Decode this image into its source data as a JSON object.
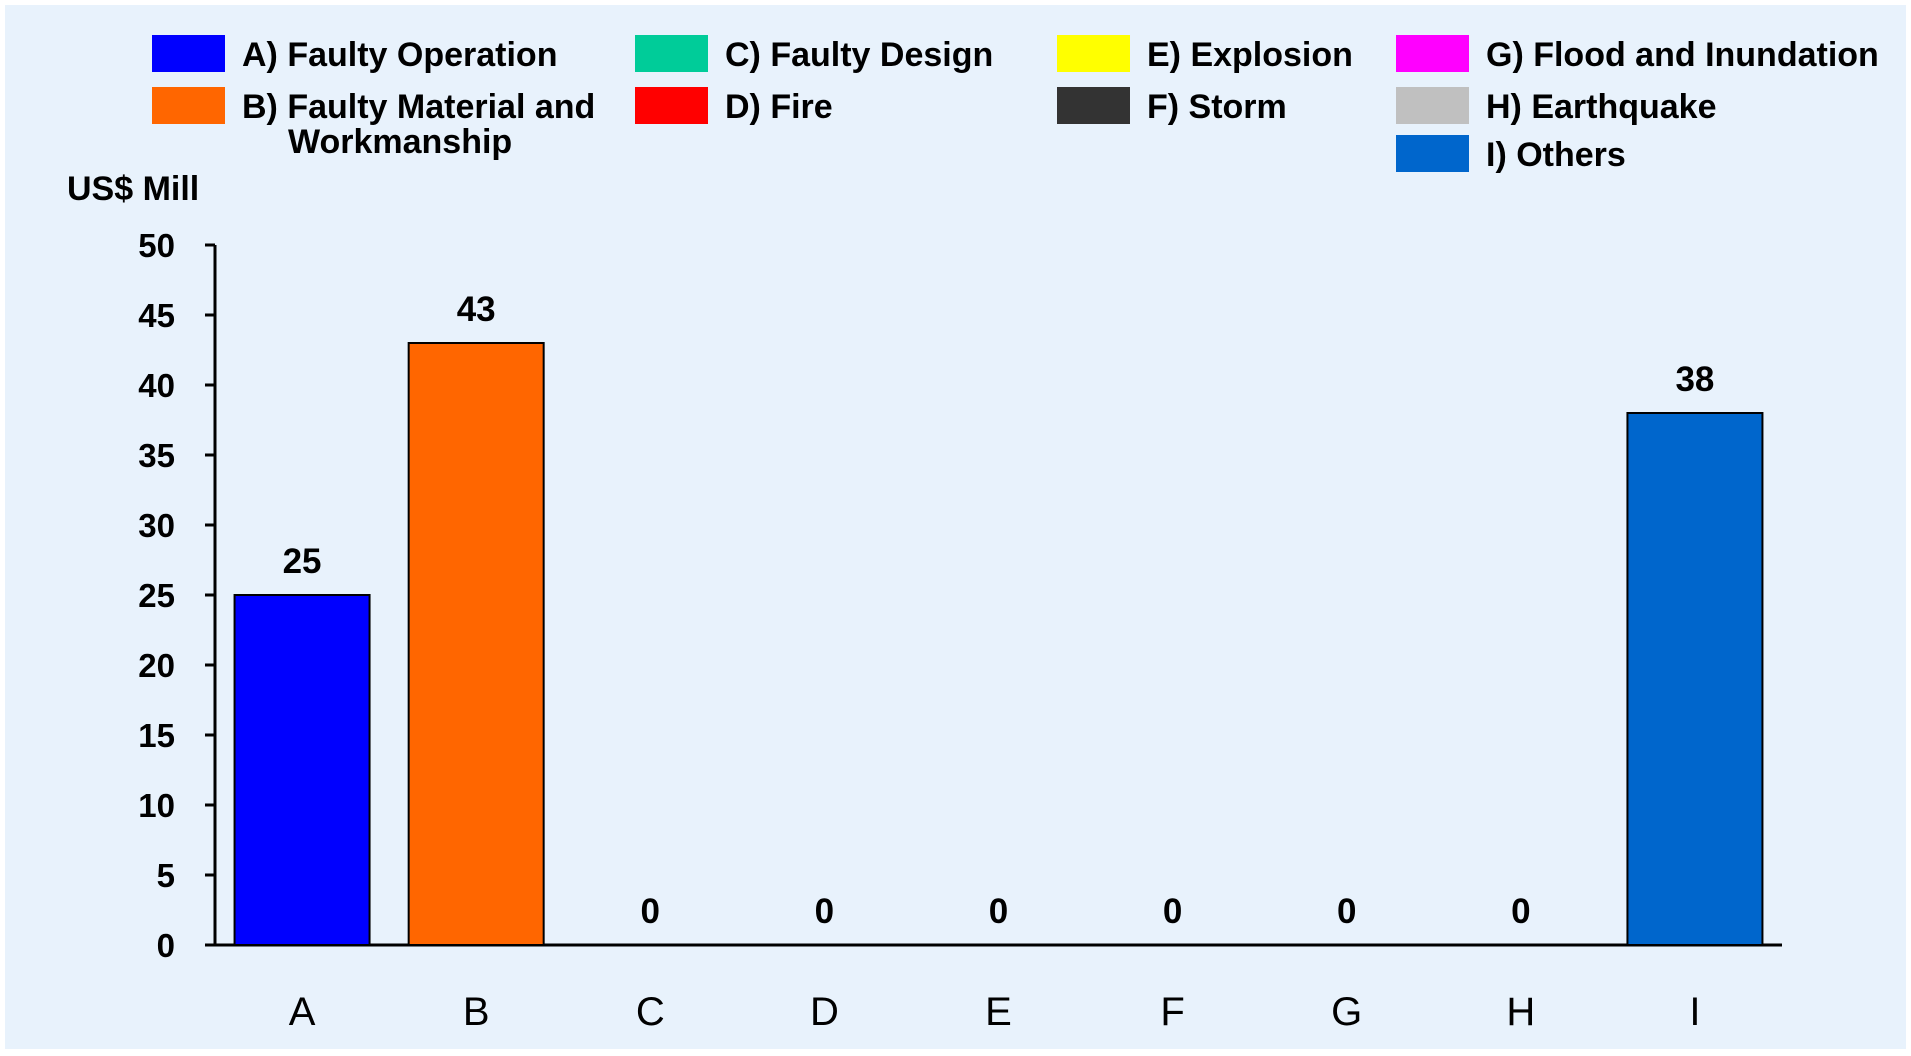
{
  "chart_data": {
    "type": "bar",
    "ylabel": "US$ Mill",
    "xlabel": "",
    "ylim": [
      0,
      50
    ],
    "yticks": [
      0,
      5,
      10,
      15,
      20,
      25,
      30,
      35,
      40,
      45,
      50
    ],
    "grid": false,
    "legend_placement": "top",
    "categories": [
      "A",
      "B",
      "C",
      "D",
      "E",
      "F",
      "G",
      "H",
      "I"
    ],
    "values": [
      25,
      43,
      0,
      0,
      0,
      0,
      0,
      0,
      38
    ],
    "data_labels": [
      "25",
      "43",
      "0",
      "0",
      "0",
      "0",
      "0",
      "0",
      "38"
    ],
    "colors": [
      "#0000FF",
      "#FF6600",
      "#00CC99",
      "#FF0000",
      "#FFFF00",
      "#333333",
      "#FF00FF",
      "#C0C0C0",
      "#0066CC"
    ],
    "legend": [
      {
        "lines": [
          "A) Faulty Operation"
        ],
        "color": "#0000FF"
      },
      {
        "lines": [
          "B) Faulty Material and",
          "Workmanship"
        ],
        "color": "#FF6600"
      },
      {
        "lines": [
          "C) Faulty Design"
        ],
        "color": "#00CC99"
      },
      {
        "lines": [
          "D) Fire"
        ],
        "color": "#FF0000"
      },
      {
        "lines": [
          "E) Explosion"
        ],
        "color": "#FFFF00"
      },
      {
        "lines": [
          "F) Storm"
        ],
        "color": "#333333"
      },
      {
        "lines": [
          "G) Flood and Inundation"
        ],
        "color": "#FF00FF"
      },
      {
        "lines": [
          "H) Earthquake"
        ],
        "color": "#C0C0C0"
      },
      {
        "lines": [
          " I) Others"
        ],
        "color": "#0066CC"
      }
    ]
  },
  "colors": {
    "background": "#E8F2FC",
    "axis": "#000000"
  }
}
